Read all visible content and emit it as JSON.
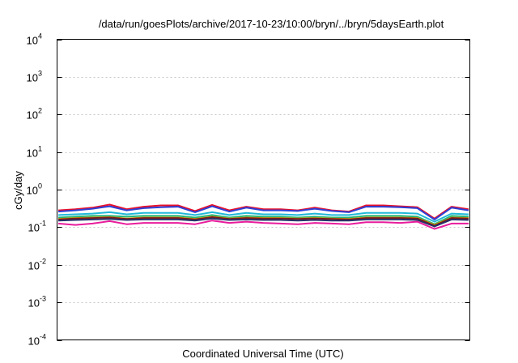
{
  "chart_data": {
    "type": "line",
    "title": "/data/run/goesPlots/archive/2017-10-23/10:00/bryn/../bryn/5daysEarth.plot",
    "xlabel": "Coordinated Universal Time (UTC)",
    "ylabel": "cGy/day",
    "yscale": "log",
    "ylim": [
      0.0001,
      10000
    ],
    "yticks": [
      {
        "base": "10",
        "exp": "-4",
        "value": 0.0001
      },
      {
        "base": "10",
        "exp": "-3",
        "value": 0.001
      },
      {
        "base": "10",
        "exp": "-2",
        "value": 0.01
      },
      {
        "base": "10",
        "exp": "-1",
        "value": 0.1
      },
      {
        "base": "10",
        "exp": "0",
        "value": 1
      },
      {
        "base": "10",
        "exp": "1",
        "value": 10
      },
      {
        "base": "10",
        "exp": "2",
        "value": 100
      },
      {
        "base": "10",
        "exp": "3",
        "value": 1000
      },
      {
        "base": "10",
        "exp": "4",
        "value": 10000
      }
    ],
    "grid": true,
    "x": [
      0,
      1,
      2,
      3,
      4,
      5,
      6,
      7,
      8,
      9,
      10,
      11,
      12,
      13,
      14,
      15,
      16,
      17,
      18,
      19,
      20,
      21,
      22,
      23,
      24
    ],
    "series": [
      {
        "color": "#e8102a",
        "values": [
          0.28,
          0.3,
          0.33,
          0.4,
          0.3,
          0.35,
          0.38,
          0.38,
          0.27,
          0.39,
          0.28,
          0.35,
          0.3,
          0.3,
          0.28,
          0.33,
          0.28,
          0.26,
          0.38,
          0.38,
          0.36,
          0.34,
          0.17,
          0.35,
          0.3
        ]
      },
      {
        "color": "#2d3fd6",
        "values": [
          0.26,
          0.28,
          0.31,
          0.36,
          0.28,
          0.32,
          0.34,
          0.35,
          0.25,
          0.36,
          0.26,
          0.33,
          0.28,
          0.28,
          0.27,
          0.31,
          0.27,
          0.25,
          0.35,
          0.35,
          0.34,
          0.32,
          0.16,
          0.33,
          0.28
        ]
      },
      {
        "color": "#20b8d8",
        "values": [
          0.21,
          0.22,
          0.23,
          0.25,
          0.22,
          0.24,
          0.24,
          0.24,
          0.21,
          0.25,
          0.21,
          0.24,
          0.22,
          0.22,
          0.21,
          0.23,
          0.21,
          0.21,
          0.24,
          0.24,
          0.24,
          0.23,
          0.14,
          0.23,
          0.22
        ]
      },
      {
        "color": "#22b47a",
        "values": [
          0.18,
          0.19,
          0.2,
          0.2,
          0.19,
          0.2,
          0.2,
          0.2,
          0.18,
          0.21,
          0.18,
          0.2,
          0.19,
          0.19,
          0.18,
          0.19,
          0.18,
          0.18,
          0.2,
          0.2,
          0.2,
          0.19,
          0.12,
          0.2,
          0.19
        ]
      },
      {
        "color": "#d9a400",
        "values": [
          0.165,
          0.175,
          0.18,
          0.185,
          0.17,
          0.18,
          0.18,
          0.18,
          0.165,
          0.19,
          0.17,
          0.18,
          0.175,
          0.175,
          0.17,
          0.175,
          0.17,
          0.165,
          0.18,
          0.18,
          0.18,
          0.175,
          0.115,
          0.18,
          0.175
        ]
      },
      {
        "color": "#7a1a1a",
        "values": [
          0.16,
          0.17,
          0.175,
          0.18,
          0.165,
          0.175,
          0.175,
          0.175,
          0.16,
          0.185,
          0.165,
          0.175,
          0.17,
          0.17,
          0.165,
          0.17,
          0.165,
          0.16,
          0.175,
          0.175,
          0.175,
          0.17,
          0.11,
          0.175,
          0.17
        ]
      },
      {
        "color": "#26306a",
        "values": [
          0.15,
          0.155,
          0.16,
          0.165,
          0.155,
          0.16,
          0.16,
          0.16,
          0.15,
          0.17,
          0.155,
          0.16,
          0.155,
          0.155,
          0.15,
          0.155,
          0.15,
          0.15,
          0.16,
          0.16,
          0.16,
          0.155,
          0.105,
          0.16,
          0.155
        ]
      },
      {
        "color": "#e81c9c",
        "values": [
          0.125,
          0.115,
          0.125,
          0.145,
          0.12,
          0.13,
          0.13,
          0.13,
          0.12,
          0.15,
          0.13,
          0.14,
          0.13,
          0.125,
          0.12,
          0.13,
          0.125,
          0.12,
          0.135,
          0.135,
          0.13,
          0.14,
          0.09,
          0.125,
          0.125
        ]
      }
    ]
  }
}
